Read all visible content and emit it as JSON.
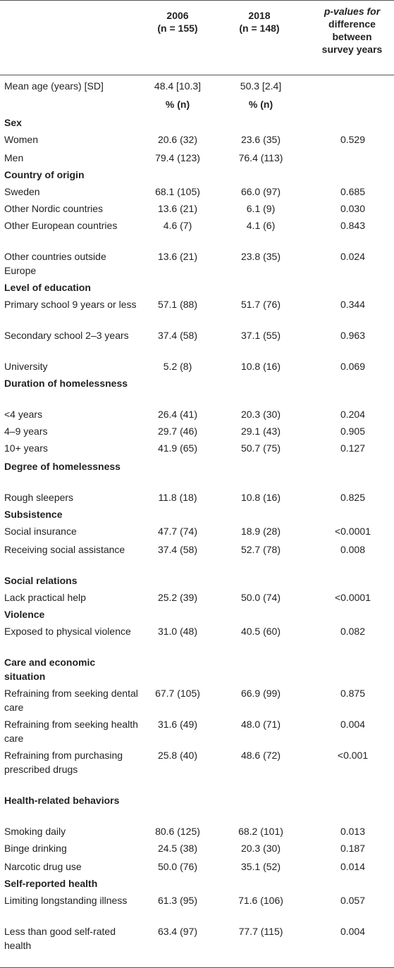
{
  "header": {
    "col2_year": "2006",
    "col2_n": "(n = 155)",
    "col3_year": "2018",
    "col3_n": "(n = 148)",
    "col4_line1": "p-values for",
    "col4_line2": "difference",
    "col4_line3": "between",
    "col4_line4": "survey years"
  },
  "rows": [
    {
      "label": "Mean age (years) [SD]",
      "c2": "48.4 [10.3]",
      "c3": "50.3 [2.4]",
      "c4": ""
    },
    {
      "label": "",
      "c2": "% (n)",
      "c3": "% (n)",
      "c4": ""
    },
    {
      "label": "Sex",
      "c2": "",
      "c3": "",
      "c4": ""
    },
    {
      "label": "Women",
      "c2": "20.6 (32)",
      "c3": "23.6 (35)",
      "c4": "0.529"
    },
    {
      "label": "Men",
      "c2": "79.4 (123)",
      "c3": "76.4 (113)",
      "c4": ""
    },
    {
      "label": "Country of origin",
      "c2": "",
      "c3": "",
      "c4": ""
    },
    {
      "label": "Sweden",
      "c2": "68.1 (105)",
      "c3": "66.0 (97)",
      "c4": "0.685"
    },
    {
      "label": "Other Nordic countries",
      "c2": "13.6 (21)",
      "c3": "6.1 (9)",
      "c4": "0.030"
    },
    {
      "label": "Other European countries",
      "c2": "4.6 (7)",
      "c3": "4.1 (6)",
      "c4": "0.843"
    },
    {
      "label": "Other countries outside Europe",
      "c2": "13.6 (21)",
      "c3": "23.8 (35)",
      "c4": "0.024"
    },
    {
      "label": "Level of education",
      "c2": "",
      "c3": "",
      "c4": ""
    },
    {
      "label": "Primary school 9 years or less",
      "c2": "57.1 (88)",
      "c3": "51.7 (76)",
      "c4": "0.344"
    },
    {
      "label": "Secondary school 2–3 years",
      "c2": "37.4 (58)",
      "c3": "37.1 (55)",
      "c4": "0.963"
    },
    {
      "label": "University",
      "c2": "5.2 (8)",
      "c3": "10.8 (16)",
      "c4": "0.069"
    },
    {
      "label": "Duration of homelessness",
      "c2": "",
      "c3": "",
      "c4": ""
    },
    {
      "label": "<4 years",
      "c2": "26.4 (41)",
      "c3": "20.3 (30)",
      "c4": "0.204"
    },
    {
      "label": "4–9 years",
      "c2": "29.7 (46)",
      "c3": "29.1 (43)",
      "c4": "0.905"
    },
    {
      "label": "10+ years",
      "c2": "41.9 (65)",
      "c3": "50.7 (75)",
      "c4": "0.127"
    },
    {
      "label": "Degree of homelessness",
      "c2": "",
      "c3": "",
      "c4": ""
    },
    {
      "label": "Rough sleepers",
      "c2": "11.8 (18)",
      "c3": "10.8 (16)",
      "c4": "0.825"
    },
    {
      "label": "Subsistence",
      "c2": "",
      "c3": "",
      "c4": ""
    },
    {
      "label": "Social insurance",
      "c2": "47.7 (74)",
      "c3": "18.9 (28)",
      "c4": "<0.0001"
    },
    {
      "label": "Receiving social assistance",
      "c2": "37.4 (58)",
      "c3": "52.7 (78)",
      "c4": "0.008"
    },
    {
      "label": "Social relations",
      "c2": "",
      "c3": "",
      "c4": ""
    },
    {
      "label": "Lack practical help",
      "c2": "25.2 (39)",
      "c3": "50.0 (74)",
      "c4": "<0.0001"
    },
    {
      "label": "Violence",
      "c2": "",
      "c3": "",
      "c4": ""
    },
    {
      "label": "Exposed to physical violence",
      "c2": "31.0 (48)",
      "c3": "40.5 (60)",
      "c4": "0.082"
    },
    {
      "label": "Care and economic situation",
      "c2": "",
      "c3": "",
      "c4": ""
    },
    {
      "label": "Refraining from seeking dental care",
      "c2": "67.7 (105)",
      "c3": "66.9 (99)",
      "c4": "0.875"
    },
    {
      "label": "Refraining from seeking health care",
      "c2": "31.6 (49)",
      "c3": "48.0 (71)",
      "c4": "0.004"
    },
    {
      "label": "Refraining from purchasing prescribed drugs",
      "c2": "25.8 (40)",
      "c3": "48.6 (72)",
      "c4": "<0.001"
    },
    {
      "label": "Health-related behaviors",
      "c2": "",
      "c3": "",
      "c4": ""
    },
    {
      "label": "Smoking daily",
      "c2": "80.6 (125)",
      "c3": "68.2 (101)",
      "c4": "0.013"
    },
    {
      "label": "Binge drinking",
      "c2": "24.5 (38)",
      "c3": "20.3 (30)",
      "c4": "0.187"
    },
    {
      "label": "Narcotic drug use",
      "c2": "50.0 (76)",
      "c3": "35.1 (52)",
      "c4": "0.014"
    },
    {
      "label": "Self-reported health",
      "c2": "",
      "c3": "",
      "c4": ""
    },
    {
      "label": "Limiting longstanding illness",
      "c2": "61.3 (95)",
      "c3": "71.6 (106)",
      "c4": "0.057"
    },
    {
      "label": "Less than good self-rated health",
      "c2": "63.4 (97)",
      "c3": "77.7 (115)",
      "c4": "0.004"
    }
  ]
}
